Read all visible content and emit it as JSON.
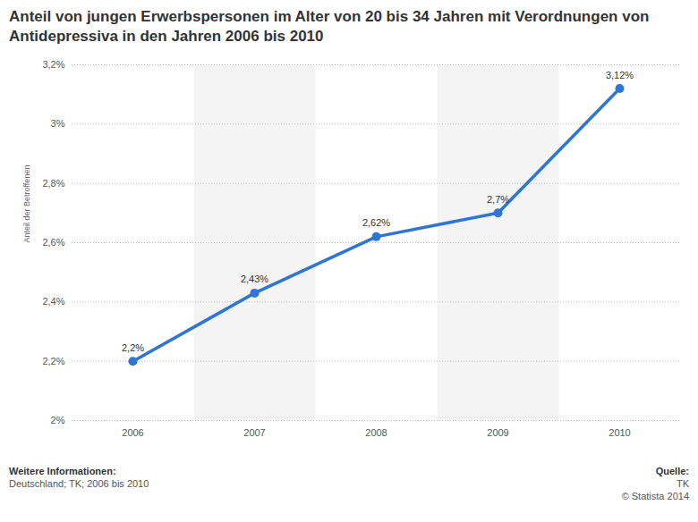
{
  "chart_data": {
    "type": "line",
    "title": "Anteil von jungen Erwerbspersonen im Alter von 20 bis 34 Jahren mit Verordnungen von Antidepressiva in den Jahren 2006 bis 2010",
    "y_label": "Anteil der Betroffenen",
    "categories": [
      "2006",
      "2007",
      "2008",
      "2009",
      "2010"
    ],
    "values": [
      2.2,
      2.43,
      2.62,
      2.7,
      3.12
    ],
    "value_labels": [
      "2,2%",
      "2,43%",
      "2,62%",
      "2,7%",
      "3,12%"
    ],
    "data_labels": true,
    "color": "#2f75d3",
    "marker": "circle",
    "line_style": "solid",
    "ylim": [
      2,
      3.2
    ],
    "yticks": [
      {
        "value": 2,
        "label": "2%"
      },
      {
        "value": 2.2,
        "label": "2,2%"
      },
      {
        "value": 2.4,
        "label": "2,4%"
      },
      {
        "value": 2.6,
        "label": "2,6%"
      },
      {
        "value": 2.8,
        "label": "2,8%"
      },
      {
        "value": 3,
        "label": "3%"
      },
      {
        "value": 3.2,
        "label": "3,2%"
      }
    ],
    "grid": true,
    "footer": {
      "left_heading": "Weitere Informationen:",
      "left_text": "Deutschland; TK; 2006 bis 2010",
      "right_heading": "Quelle:",
      "right_text": "TK",
      "copyright": "© Statista 2014"
    }
  }
}
